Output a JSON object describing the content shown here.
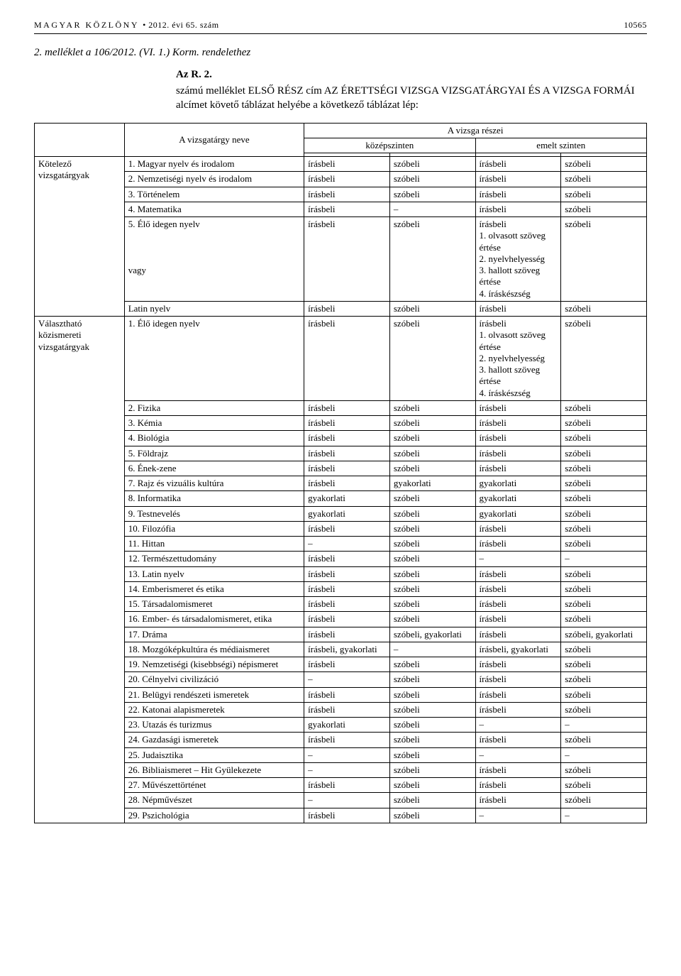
{
  "header": {
    "publication": "MAGYAR KÖZLÖNY",
    "issue": "• 2012. évi 65. szám",
    "page_number": "10565"
  },
  "attachment_title": "2. melléklet a 106/2012. (VI. 1.) Korm. rendelethez",
  "block_title": "Az R. 2. számú melléklet ELSŐ RÉSZ cím AZ ÉRETTSÉGI VIZSGA VIZSGATÁRGYAI ÉS A VIZSGA FORMÁI alcímet követő táblázat helyébe a következő táblázat lép:",
  "table": {
    "head": {
      "subject_col": "A vizsgatárgy neve",
      "parts_label": "A vizsga részei",
      "mid_level": "középszinten",
      "high_level": "emelt szinten"
    },
    "categories": [
      {
        "label": "Kötelező vizsgatárgyak",
        "rows": [
          {
            "name": "1. Magyar nyelv és irodalom",
            "cells": [
              "írásbeli",
              "szóbeli",
              "írásbeli",
              "szóbeli"
            ]
          },
          {
            "name": "2. Nemzetiségi nyelv és irodalom",
            "cells": [
              "írásbeli",
              "szóbeli",
              "írásbeli",
              "szóbeli"
            ]
          },
          {
            "name": "3. Történelem",
            "cells": [
              "írásbeli",
              "szóbeli",
              "írásbeli",
              "szóbeli"
            ]
          },
          {
            "name": "4. Matematika",
            "cells": [
              "írásbeli",
              "–",
              "írásbeli",
              "szóbeli"
            ]
          },
          {
            "name": "5. Élő idegen nyelv\n\n\n\nvagy",
            "cells": [
              "írásbeli",
              "szóbeli",
              "írásbeli\n1. olvasott szöveg értése\n2. nyelvhelyesség\n3. hallott szöveg értése\n4. íráskészség",
              "szóbeli"
            ]
          },
          {
            "name": "Latin nyelv",
            "cells": [
              "írásbeli",
              "szóbeli",
              "írásbeli",
              "szóbeli"
            ]
          }
        ]
      },
      {
        "label": "Választható közismereti vizsgatárgyak",
        "rows": [
          {
            "name": "1. Élő idegen nyelv",
            "cells": [
              "írásbeli",
              "szóbeli",
              "írásbeli\n1. olvasott szöveg értése\n2. nyelvhelyesség\n3. hallott szöveg értése\n4. íráskészség",
              "szóbeli"
            ]
          },
          {
            "name": "2. Fizika",
            "cells": [
              "írásbeli",
              "szóbeli",
              "írásbeli",
              "szóbeli"
            ]
          },
          {
            "name": "3. Kémia",
            "cells": [
              "írásbeli",
              "szóbeli",
              "írásbeli",
              "szóbeli"
            ]
          },
          {
            "name": "4. Biológia",
            "cells": [
              "írásbeli",
              "szóbeli",
              "írásbeli",
              "szóbeli"
            ]
          },
          {
            "name": "5. Földrajz",
            "cells": [
              "írásbeli",
              "szóbeli",
              "írásbeli",
              "szóbeli"
            ]
          },
          {
            "name": "6. Ének-zene",
            "cells": [
              "írásbeli",
              "szóbeli",
              "írásbeli",
              "szóbeli"
            ]
          },
          {
            "name": "7. Rajz és vizuális kultúra",
            "cells": [
              "írásbeli",
              "gyakorlati",
              "gyakorlati",
              "szóbeli"
            ]
          },
          {
            "name": "8. Informatika",
            "cells": [
              "gyakorlati",
              "szóbeli",
              "gyakorlati",
              "szóbeli"
            ]
          },
          {
            "name": "9. Testnevelés",
            "cells": [
              "gyakorlati",
              "szóbeli",
              "gyakorlati",
              "szóbeli"
            ]
          },
          {
            "name": "10. Filozófia",
            "cells": [
              "írásbeli",
              "szóbeli",
              "írásbeli",
              "szóbeli"
            ]
          },
          {
            "name": "11. Hittan",
            "cells": [
              "–",
              "szóbeli",
              "írásbeli",
              "szóbeli"
            ]
          },
          {
            "name": "12. Természettudomány",
            "cells": [
              "írásbeli",
              "szóbeli",
              "–",
              "–"
            ]
          },
          {
            "name": "13. Latin nyelv",
            "cells": [
              "írásbeli",
              "szóbeli",
              "írásbeli",
              "szóbeli"
            ]
          },
          {
            "name": "14. Emberismeret és etika",
            "cells": [
              "írásbeli",
              "szóbeli",
              "írásbeli",
              "szóbeli"
            ]
          },
          {
            "name": "15. Társadalomismeret",
            "cells": [
              "írásbeli",
              "szóbeli",
              "írásbeli",
              "szóbeli"
            ]
          },
          {
            "name": "16. Ember- és társadalomismeret, etika",
            "cells": [
              "írásbeli",
              "szóbeli",
              "írásbeli",
              "szóbeli"
            ]
          },
          {
            "name": "17. Dráma",
            "cells": [
              "írásbeli",
              "szóbeli, gyakorlati",
              "írásbeli",
              "szóbeli, gyakorlati"
            ]
          },
          {
            "name": "18. Mozgóképkultúra és médiaismeret",
            "cells": [
              "írásbeli, gyakorlati",
              "–",
              "írásbeli, gyakorlati",
              "szóbeli"
            ]
          },
          {
            "name": "19. Nemzetiségi (kisebbségi) népismeret",
            "cells": [
              "írásbeli",
              "szóbeli",
              "írásbeli",
              "szóbeli"
            ]
          },
          {
            "name": "20. Célnyelvi civilizáció",
            "cells": [
              "–",
              "szóbeli",
              "írásbeli",
              "szóbeli"
            ]
          },
          {
            "name": "21. Belügyi rendészeti ismeretek",
            "cells": [
              "írásbeli",
              "szóbeli",
              "írásbeli",
              "szóbeli"
            ]
          },
          {
            "name": "22. Katonai alapismeretek",
            "cells": [
              "írásbeli",
              "szóbeli",
              "írásbeli",
              "szóbeli"
            ]
          },
          {
            "name": "23. Utazás és turizmus",
            "cells": [
              "gyakorlati",
              "szóbeli",
              "–",
              "–"
            ]
          },
          {
            "name": "24. Gazdasági ismeretek",
            "cells": [
              "írásbeli",
              "szóbeli",
              "írásbeli",
              "szóbeli"
            ]
          },
          {
            "name": "25. Judaisztika",
            "cells": [
              "–",
              "szóbeli",
              "–",
              "–"
            ]
          },
          {
            "name": "26. Bibliaismeret – Hit Gyülekezete",
            "cells": [
              "–",
              "szóbeli",
              "írásbeli",
              "szóbeli"
            ]
          },
          {
            "name": "27. Művészettörténet",
            "cells": [
              "írásbeli",
              "szóbeli",
              "írásbeli",
              "szóbeli"
            ]
          },
          {
            "name": "28. Népművészet",
            "cells": [
              "–",
              "szóbeli",
              "írásbeli",
              "szóbeli"
            ]
          },
          {
            "name": "29. Pszichológia",
            "cells": [
              "írásbeli",
              "szóbeli",
              "–",
              "–"
            ]
          }
        ]
      }
    ]
  }
}
